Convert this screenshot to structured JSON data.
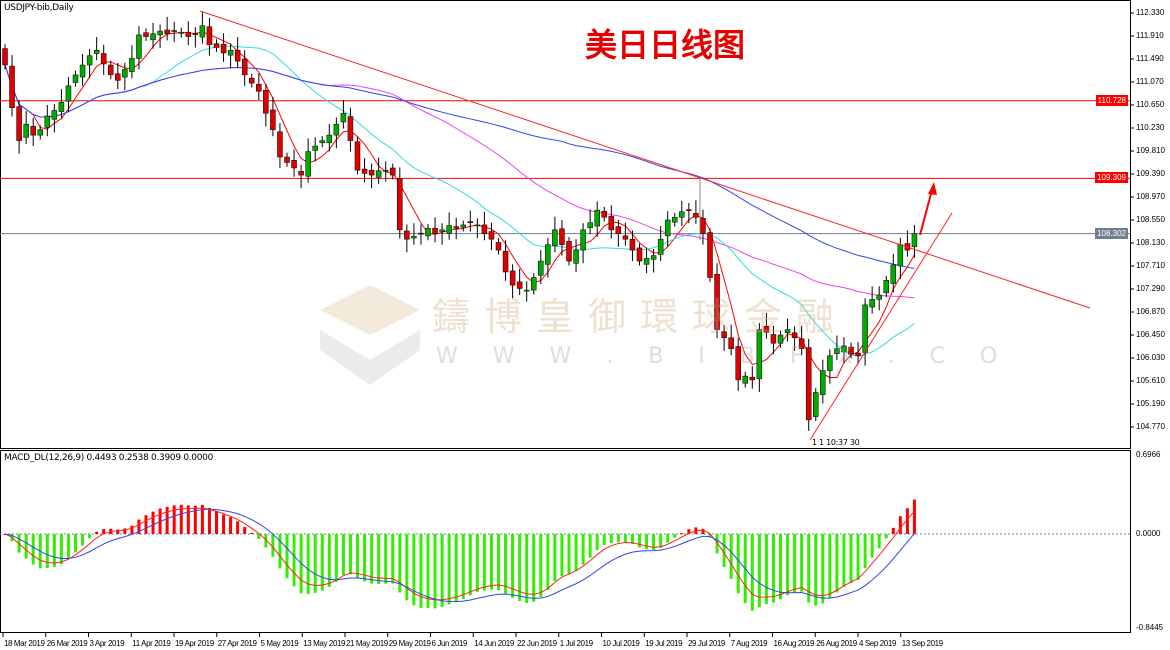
{
  "header": {
    "symbol": "USDJPY-bib,Daily",
    "macd_label": "MACD_DL(12,26,9) 0.4493 0.2538 0.3909 0.0000",
    "time_marker": "1 1 10:37 30"
  },
  "title": "美日日线图",
  "watermark": {
    "cn": "鑄博皇御環球金融",
    "url": "W W W . B I B F X . C O"
  },
  "colors": {
    "bull": "#00aa00",
    "bear": "#e00000",
    "ma_fast": "#ff0000",
    "ma_mid": "#33dddd",
    "ma_slow": "#ee44ee",
    "ma_long": "#3344ee",
    "hist_pos": "#ff0000",
    "hist_neg": "#33ee00"
  },
  "chart_data": {
    "type": "candlestick",
    "price_axis": {
      "ticks": [
        "112.330",
        "111.910",
        "111.490",
        "111.070",
        "110.650",
        "110.230",
        "109.810",
        "109.390",
        "108.970",
        "108.550",
        "108.130",
        "107.710",
        "107.290",
        "106.870",
        "106.450",
        "106.030",
        "105.610",
        "105.190",
        "104.770"
      ],
      "ylim": [
        104.77,
        112.33
      ]
    },
    "levels": [
      {
        "value": "110.728",
        "color": "#ff0000"
      },
      {
        "value": "109.309",
        "color": "#ff0000"
      },
      {
        "value": "108.302",
        "color": "#6f7f8f"
      }
    ],
    "macd_axis": {
      "ticks": [
        "0.6966",
        "0.0000",
        "-0.8445"
      ],
      "ylim": [
        -0.8445,
        0.6966
      ]
    },
    "dates": [
      "18 Mar 2019",
      "26 Mar 2019",
      "3 Apr 2019",
      "11 Apr 2019",
      "19 Apr 2019",
      "27 Apr 2019",
      "5 May 2019",
      "13 May 2019",
      "21 May 2019",
      "29 May 2019",
      "6 Jun 2019",
      "14 Jun 2019",
      "22 Jun 2019",
      "1 Jul 2019",
      "10 Jul 2019",
      "19 Jul 2019",
      "29 Jul 2019",
      "7 Aug 2019",
      "16 Aug 2019",
      "26 Aug 2019",
      "4 Sep 2019",
      "13 Sep 2019"
    ],
    "closes": [
      111.38,
      110.6,
      110.0,
      110.3,
      110.1,
      110.2,
      110.45,
      110.55,
      110.7,
      111.0,
      111.2,
      111.38,
      111.55,
      111.65,
      111.4,
      111.2,
      111.1,
      111.3,
      111.5,
      111.93,
      111.9,
      111.95,
      112.0,
      111.95,
      112.0,
      111.98,
      111.9,
      111.95,
      112.1,
      111.75,
      111.7,
      111.6,
      111.65,
      111.45,
      111.2,
      111.05,
      110.9,
      110.5,
      110.2,
      109.7,
      109.6,
      109.5,
      109.37,
      109.8,
      109.9,
      110.0,
      110.1,
      110.3,
      110.5,
      110.0,
      109.46,
      109.4,
      109.37,
      109.45,
      109.46,
      109.37,
      108.37,
      108.2,
      108.25,
      108.3,
      108.4,
      108.3,
      108.37,
      108.45,
      108.4,
      108.46,
      108.5,
      108.46,
      108.3,
      108.2,
      108.0,
      107.6,
      107.36,
      107.3,
      107.27,
      107.5,
      107.8,
      108.1,
      108.37,
      108.1,
      107.8,
      108.0,
      108.37,
      108.5,
      108.73,
      108.6,
      108.37,
      108.3,
      108.2,
      108.0,
      107.8,
      107.85,
      107.9,
      108.2,
      108.55,
      108.6,
      108.7,
      108.73,
      108.6,
      108.3,
      107.5,
      106.55,
      106.4,
      106.2,
      105.63,
      105.7,
      105.63,
      106.55,
      106.5,
      106.3,
      106.45,
      106.55,
      106.4,
      106.2,
      104.9,
      105.4,
      105.8,
      106.07,
      106.2,
      106.25,
      106.1,
      106.07,
      107.0,
      107.1,
      107.18,
      107.45,
      107.73,
      108.1,
      108.0,
      108.3
    ]
  }
}
